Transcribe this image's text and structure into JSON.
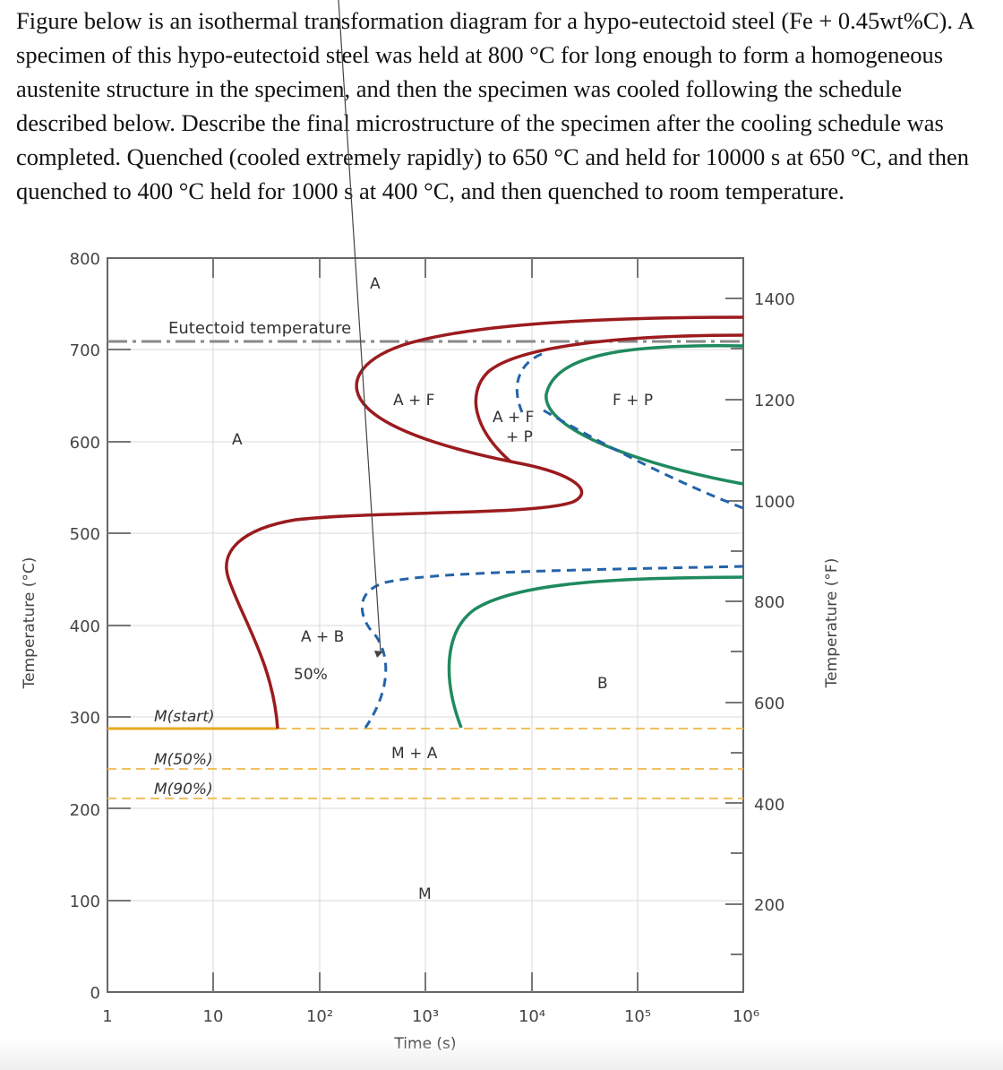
{
  "question": "Figure below is an isothermal transformation diagram for a hypo-eutectoid steel (Fe + 0.45wt%C). A specimen of this hypo-eutectoid steel was held at 800 °C for long enough to form a homogeneous austenite structure in the specimen, and then the specimen was cooled following the schedule described below. Describe the final microstructure of the specimen after the cooling schedule was completed. Quenched (cooled extremely rapidly) to 650 °C and held for 10000 s at 650 °C, and then quenched to 400 °C held for 1000 s at 400 °C, and then quenched to room temperature.",
  "diagram": {
    "x_axis": {
      "label": "Time (s)",
      "scale": "log",
      "ticks": [
        "1",
        "10",
        "10²",
        "10³",
        "10⁴",
        "10⁵",
        "10⁶"
      ]
    },
    "y_axis_left": {
      "label": "Temperature (°C)",
      "ticks": [
        "0",
        "100",
        "200",
        "300",
        "400",
        "500",
        "600",
        "700",
        "800"
      ]
    },
    "y_axis_right": {
      "label": "Temperature (°F)",
      "ticks": [
        "200",
        "400",
        "600",
        "800",
        "1000",
        "1200",
        "1400"
      ]
    },
    "eutectoid_label": "Eutectoid temperature",
    "regions": {
      "a_top": "A",
      "a_left": "A",
      "a_plus_f": "A + F",
      "a_f_p_1": "A + F",
      "a_f_p_2": "+ P",
      "f_plus_p": "F + P",
      "a_plus_b": "A + B",
      "fifty": "50%",
      "b": "B",
      "m_plus_a": "M + A",
      "m": "M"
    },
    "martensite": {
      "start": "M(start)",
      "fifty": "M(50%)",
      "ninety": "M(90%)"
    },
    "colors": {
      "start_curve": "#9b1b1e",
      "finish_curve": "#1f8a5e",
      "fifty_curve": "#2463a8",
      "martensite": "#e8a81e",
      "eutectoid": "#888888"
    }
  }
}
